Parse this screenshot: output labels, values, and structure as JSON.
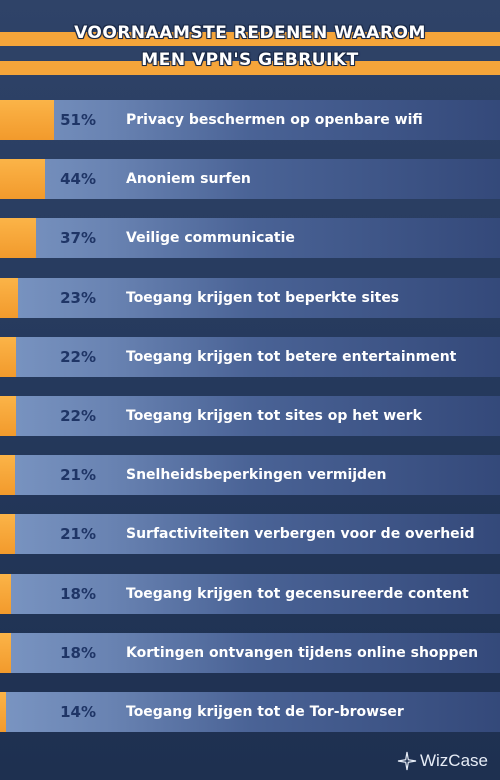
{
  "header": {
    "title_line1": "VOORNAAMSTE REDENEN WAAROM",
    "title_line2": "MEN VPN'S GEBRUIKT"
  },
  "brand": {
    "name": "WizCase",
    "icon": "sparkle-logo-icon"
  },
  "colors": {
    "bar": "#f5a53a",
    "percent_text": "#1f3566",
    "label_text": "#ffffff",
    "background": "#2a3d61"
  },
  "chart_data": {
    "type": "bar",
    "orientation": "horizontal",
    "title": "VOORNAAMSTE REDENEN WAAROM MEN VPN'S GEBRUIKT",
    "categories": [
      "Privacy beschermen op openbare wifi",
      "Anoniem surfen",
      "Veilige communicatie",
      "Toegang krijgen tot beperkte sites",
      "Toegang krijgen tot betere entertainment",
      "Toegang krijgen tot sites op het werk",
      "Snelheidsbeperkingen vermijden",
      "Surfactiviteiten verbergen voor de overheid",
      "Toegang krijgen tot gecensureerde content",
      "Kortingen ontvangen tijdens online shoppen",
      "Toegang krijgen tot de Tor-browser"
    ],
    "values": [
      51,
      44,
      37,
      23,
      22,
      22,
      21,
      21,
      18,
      18,
      14
    ],
    "value_labels": [
      "51%",
      "44%",
      "37%",
      "23%",
      "22%",
      "22%",
      "21%",
      "21%",
      "18%",
      "18%",
      "14%"
    ],
    "unit": "%",
    "xlim": [
      14,
      51
    ]
  }
}
